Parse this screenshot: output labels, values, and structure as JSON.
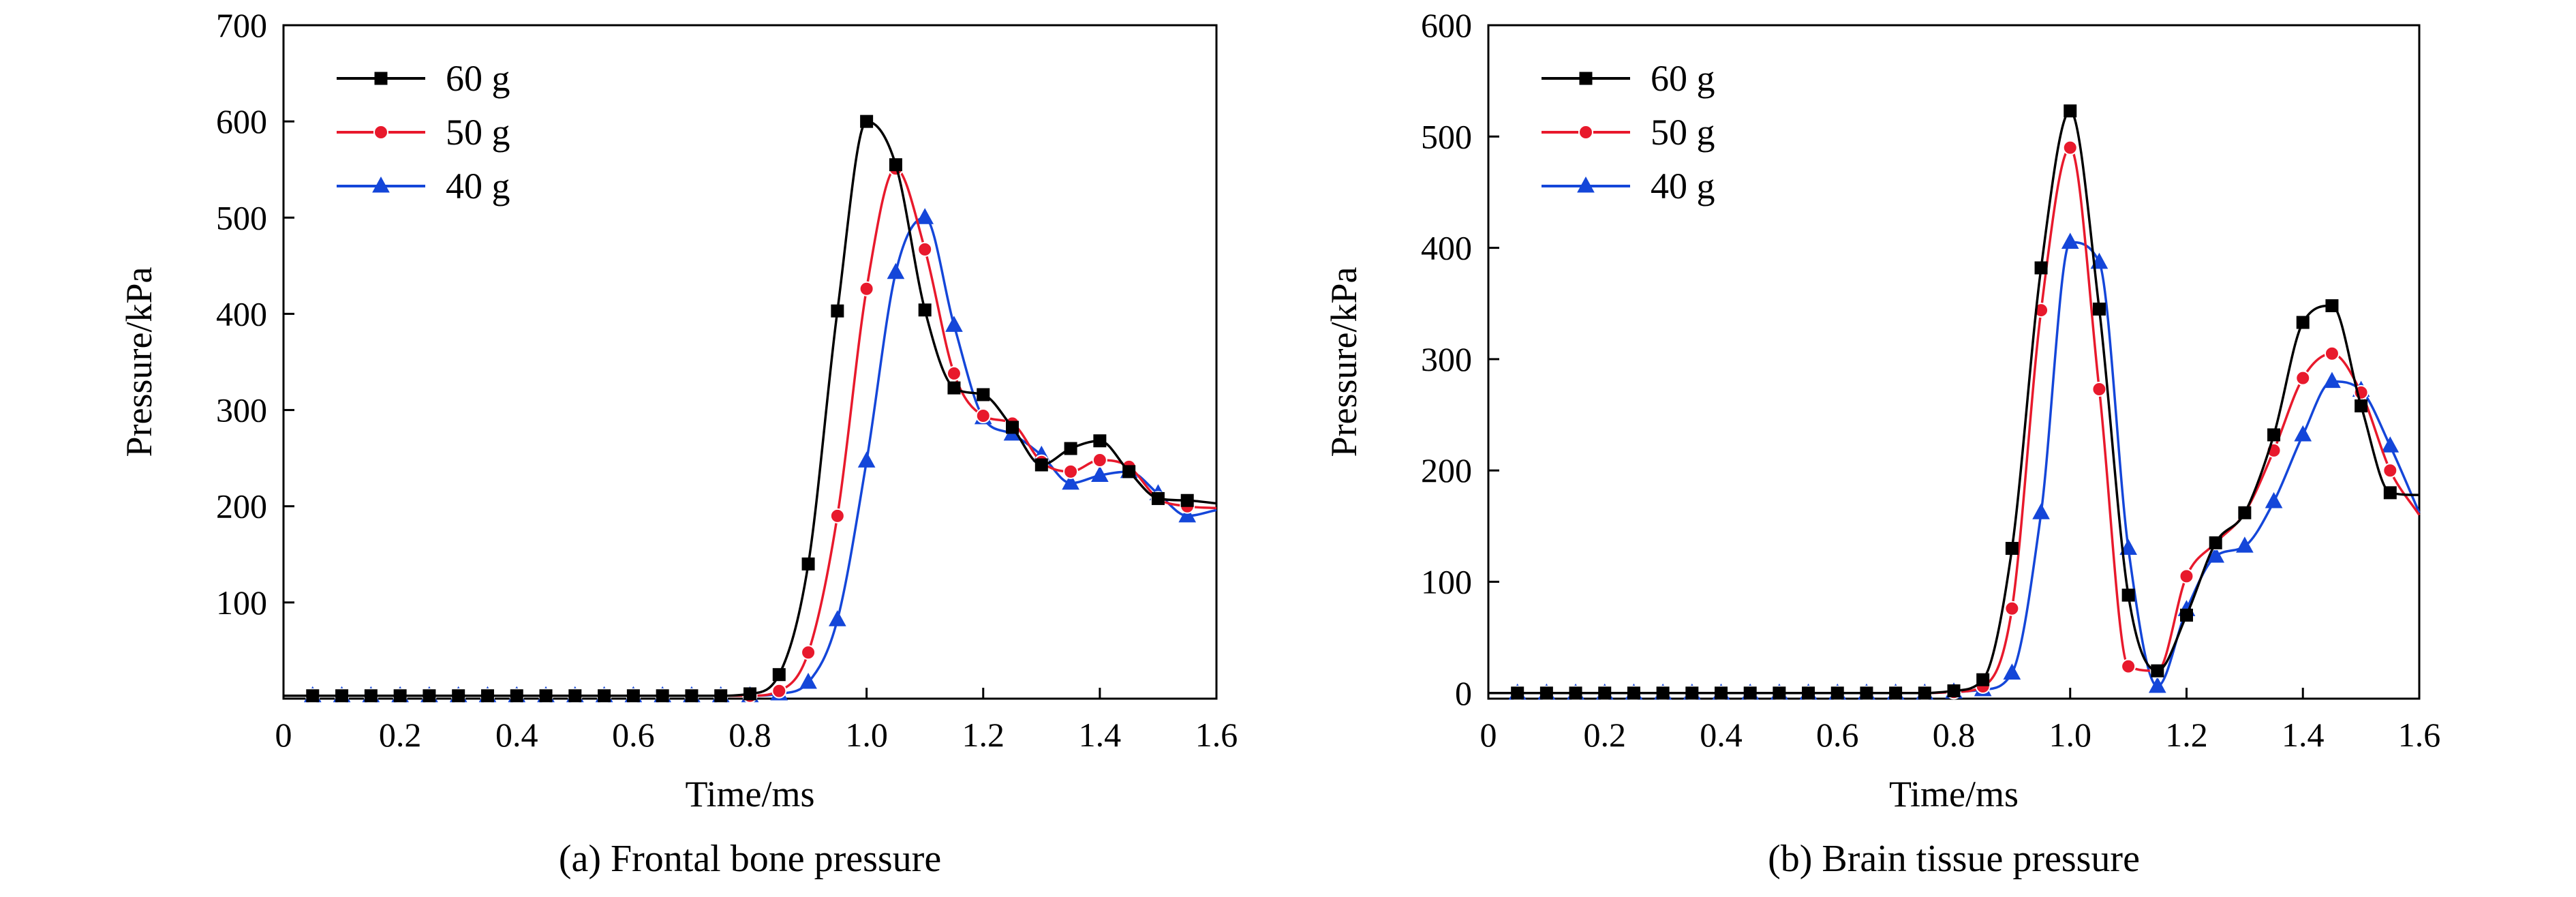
{
  "colors": {
    "60 g": "#000000",
    "50 g": "#e8192c",
    "40 g": "#1446d9"
  },
  "chart_data": [
    {
      "type": "line",
      "caption": "(a) Frontal bone pressure",
      "xlabel": "Time/ms",
      "ylabel": "Pressure/kPa",
      "xlim": [
        0,
        1.6
      ],
      "ylim": [
        0,
        700
      ],
      "xticks": [
        "0",
        "0.2",
        "0.4",
        "0.6",
        "0.8",
        "1.0",
        "1.2",
        "1.4",
        "1.6"
      ],
      "yticks": [
        "100",
        "200",
        "300",
        "400",
        "500",
        "600",
        "700"
      ],
      "legend_position": "top-left",
      "grid": false,
      "series": [
        {
          "name": "60 g",
          "marker": "square",
          "x": [
            0.0,
            0.05,
            0.1,
            0.15,
            0.2,
            0.25,
            0.3,
            0.35,
            0.4,
            0.45,
            0.5,
            0.55,
            0.6,
            0.65,
            0.7,
            0.75,
            0.8,
            0.85,
            0.9,
            0.95,
            1.0,
            1.05,
            1.1,
            1.15,
            1.2,
            1.25,
            1.3,
            1.35,
            1.4,
            1.45,
            1.5,
            1.55,
            1.6
          ],
          "y": [
            3,
            3,
            3,
            3,
            3,
            3,
            3,
            3,
            3,
            3,
            3,
            3,
            3,
            3,
            3,
            3,
            5,
            25,
            140,
            403,
            600,
            555,
            404,
            323,
            316,
            282,
            243,
            260,
            268,
            236,
            208,
            206,
            203
          ]
        },
        {
          "name": "50 g",
          "marker": "circle",
          "x": [
            0.0,
            0.05,
            0.1,
            0.15,
            0.2,
            0.25,
            0.3,
            0.35,
            0.4,
            0.45,
            0.5,
            0.55,
            0.6,
            0.65,
            0.7,
            0.75,
            0.8,
            0.85,
            0.9,
            0.95,
            1.0,
            1.05,
            1.1,
            1.15,
            1.2,
            1.25,
            1.3,
            1.35,
            1.4,
            1.45,
            1.5,
            1.55,
            1.6
          ],
          "y": [
            3,
            3,
            3,
            3,
            3,
            3,
            3,
            3,
            3,
            3,
            3,
            3,
            3,
            3,
            3,
            3,
            3,
            8,
            48,
            190,
            426,
            551,
            467,
            338,
            294,
            286,
            246,
            236,
            248,
            241,
            208,
            200,
            198
          ]
        },
        {
          "name": "40 g",
          "marker": "triangle",
          "x": [
            0.0,
            0.05,
            0.1,
            0.15,
            0.2,
            0.25,
            0.3,
            0.35,
            0.4,
            0.45,
            0.5,
            0.55,
            0.6,
            0.65,
            0.7,
            0.75,
            0.8,
            0.85,
            0.9,
            0.95,
            1.0,
            1.05,
            1.1,
            1.15,
            1.2,
            1.25,
            1.3,
            1.35,
            1.4,
            1.45,
            1.5,
            1.55,
            1.6
          ],
          "y": [
            3,
            3,
            3,
            3,
            3,
            3,
            3,
            3,
            3,
            3,
            3,
            3,
            3,
            3,
            3,
            3,
            3,
            5,
            17,
            82,
            247,
            443,
            500,
            388,
            292,
            275,
            253,
            224,
            232,
            236,
            213,
            190,
            196
          ]
        }
      ]
    },
    {
      "type": "line",
      "caption": "(b) Brain tissue pressure",
      "xlabel": "Time/ms",
      "ylabel": "Pressure/kPa",
      "xlim": [
        0,
        1.6
      ],
      "ylim": [
        -5,
        600
      ],
      "xticks": [
        "0",
        "0.2",
        "0.4",
        "0.6",
        "0.8",
        "1.0",
        "1.2",
        "1.4",
        "1.6"
      ],
      "yticks": [
        "0",
        "100",
        "200",
        "300",
        "400",
        "500",
        "600"
      ],
      "legend_position": "top-left",
      "grid": false,
      "series": [
        {
          "name": "60 g",
          "marker": "square",
          "x": [
            0.0,
            0.05,
            0.1,
            0.15,
            0.2,
            0.25,
            0.3,
            0.35,
            0.4,
            0.45,
            0.5,
            0.55,
            0.6,
            0.65,
            0.7,
            0.75,
            0.8,
            0.85,
            0.9,
            0.95,
            1.0,
            1.05,
            1.1,
            1.15,
            1.2,
            1.25,
            1.3,
            1.35,
            1.4,
            1.45,
            1.5,
            1.55,
            1.6
          ],
          "y": [
            0,
            0,
            0,
            0,
            0,
            0,
            0,
            0,
            0,
            0,
            0,
            0,
            0,
            0,
            0,
            0,
            2,
            12,
            130,
            382,
            523,
            345,
            88,
            20,
            70,
            135,
            162,
            232,
            333,
            348,
            258,
            180,
            178
          ]
        },
        {
          "name": "50 g",
          "marker": "circle",
          "x": [
            0.0,
            0.05,
            0.1,
            0.15,
            0.2,
            0.25,
            0.3,
            0.35,
            0.4,
            0.45,
            0.5,
            0.55,
            0.6,
            0.65,
            0.7,
            0.75,
            0.8,
            0.85,
            0.9,
            0.95,
            1.0,
            1.05,
            1.1,
            1.15,
            1.2,
            1.25,
            1.3,
            1.35,
            1.4,
            1.45,
            1.5,
            1.55,
            1.6
          ],
          "y": [
            0,
            0,
            0,
            0,
            0,
            0,
            0,
            0,
            0,
            0,
            0,
            0,
            0,
            0,
            0,
            0,
            1,
            6,
            76,
            344,
            490,
            273,
            24,
            20,
            105,
            135,
            162,
            218,
            283,
            305,
            270,
            200,
            160
          ]
        },
        {
          "name": "40 g",
          "marker": "triangle",
          "x": [
            0.0,
            0.05,
            0.1,
            0.15,
            0.2,
            0.25,
            0.3,
            0.35,
            0.4,
            0.45,
            0.5,
            0.55,
            0.6,
            0.65,
            0.7,
            0.75,
            0.8,
            0.85,
            0.9,
            0.95,
            1.0,
            1.05,
            1.1,
            1.15,
            1.2,
            1.25,
            1.3,
            1.35,
            1.4,
            1.45,
            1.5,
            1.55,
            1.6
          ],
          "y": [
            0,
            0,
            0,
            0,
            0,
            0,
            0,
            0,
            0,
            0,
            0,
            0,
            0,
            0,
            0,
            0,
            1,
            3,
            18,
            162,
            405,
            387,
            130,
            6,
            75,
            123,
            132,
            172,
            232,
            280,
            272,
            222,
            162
          ]
        }
      ]
    }
  ]
}
